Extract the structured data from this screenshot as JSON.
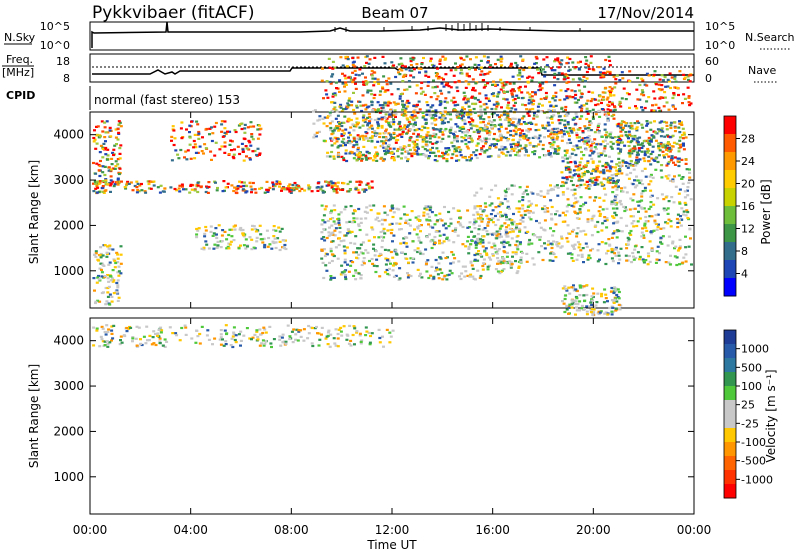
{
  "header": {
    "title": "Pykkvibaer (fitACF)",
    "beam": "Beam 07",
    "date": "17/Nov/2014"
  },
  "panels": {
    "nsky": {
      "left_label": "N.Sky",
      "left_ticks": [
        "10^5",
        "10^0"
      ],
      "right_ticks": [
        "10^5",
        "10^0"
      ],
      "right_label": "N.Search"
    },
    "freq": {
      "left_label_1": "Freq.",
      "left_label_2": "[MHz]",
      "left_ticks": [
        "18",
        "8"
      ],
      "right_ticks": [
        "60",
        "0"
      ],
      "right_label": "Nave"
    },
    "cpid": {
      "label": "CPID",
      "value": "normal (fast stereo) 153"
    }
  },
  "chart_data": [
    {
      "type": "heatmap",
      "name": "power",
      "ylabel": "Slant Range [km]",
      "xlabel": "",
      "xlim": [
        0,
        24
      ],
      "ylim": [
        180,
        4500
      ],
      "yticks": [
        "1000",
        "2000",
        "3000",
        "4000"
      ],
      "colorbar": {
        "label": "Power [dB]",
        "ticks": [
          "28",
          "24",
          "20",
          "16",
          "12",
          "8",
          "4"
        ],
        "colors": [
          "#ff0000",
          "#ff5a00",
          "#ff9900",
          "#ffcc00",
          "#c8d200",
          "#6ebe3c",
          "#3c9646",
          "#326e8c",
          "#1e46b4",
          "#0000ff"
        ]
      }
    },
    {
      "type": "heatmap",
      "name": "velocity",
      "ylabel": "Slant Range [km]",
      "xlabel": "Time UT",
      "xlim": [
        0,
        24
      ],
      "ylim": [
        180,
        4500
      ],
      "yticks": [
        "1000",
        "2000",
        "3000",
        "4000"
      ],
      "xticks": [
        "00:00",
        "04:00",
        "08:00",
        "12:00",
        "16:00",
        "20:00",
        "00:00"
      ],
      "colorbar": {
        "label": "Velocity [m s⁻¹]",
        "ticks": [
          "1000",
          "500",
          "100",
          "25",
          "-25",
          "-100",
          "-500",
          "-1000"
        ],
        "colors": [
          "#1e3c96",
          "#285aaa",
          "#2d78a0",
          "#329650",
          "#50c83c",
          "#c8c8c8",
          "#c8c8c8",
          "#ffc800",
          "#ff9600",
          "#ff6400",
          "#ff3200",
          "#ff0000"
        ]
      }
    }
  ]
}
